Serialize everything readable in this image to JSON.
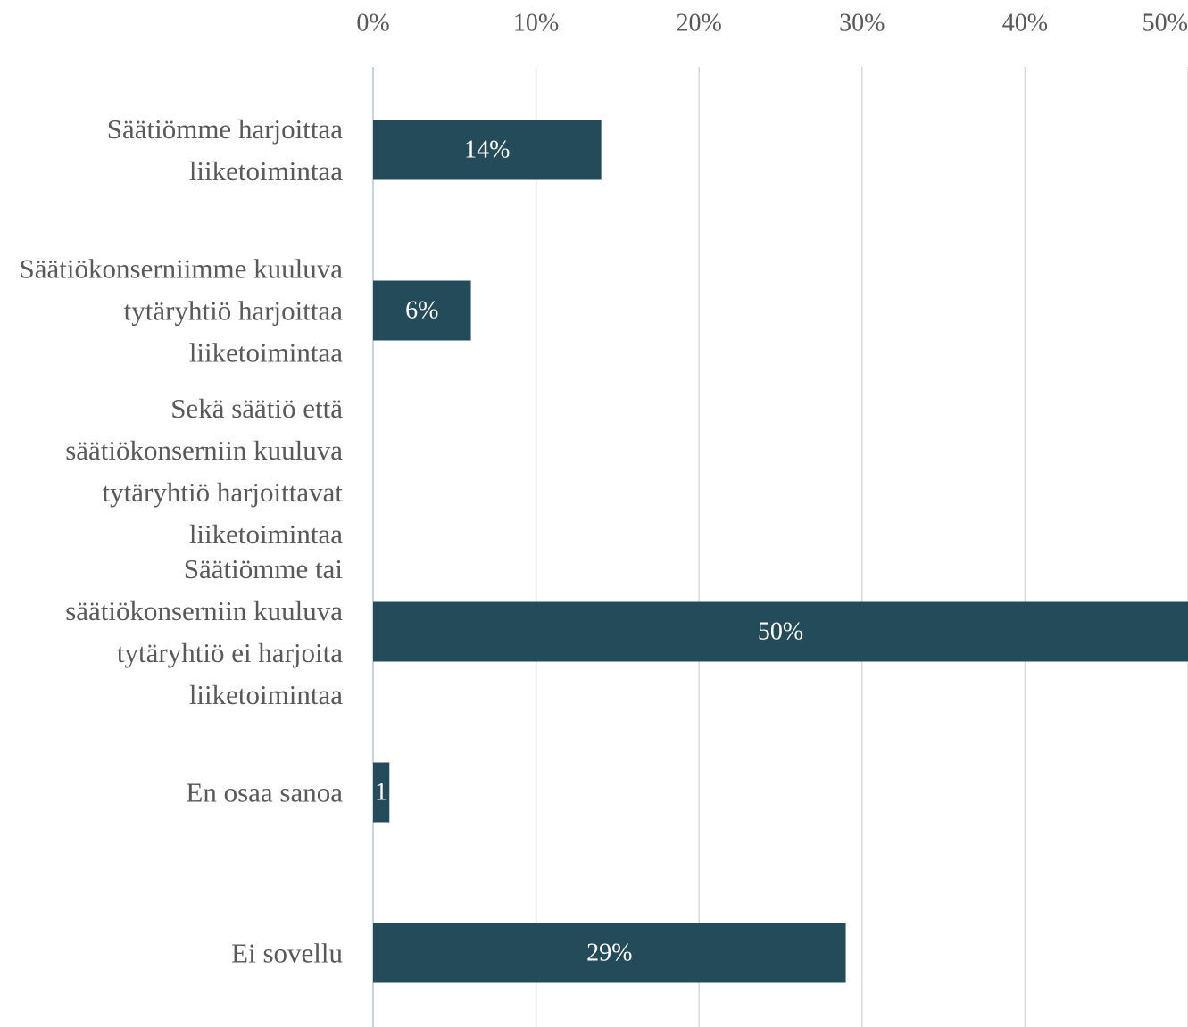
{
  "chart_data": {
    "type": "barh",
    "categories": [
      "Säätiömme harjoittaa liiketoimintaa",
      "Säätiökonserniimme kuuluva tytäryhtiö harjoittaa liiketoimintaa",
      "Sekä säätiö että säätiökonserniin kuuluva tytäryhtiö harjoittavat liiketoimintaa",
      "Säätiömme tai säätiökonserniin kuuluva tytäryhtiö ei harjoita liiketoimintaa",
      "En osaa sanoa",
      "Ei sovellu"
    ],
    "values": [
      14,
      6,
      0,
      50,
      1,
      29
    ],
    "value_labels": [
      "14%",
      "6%",
      null,
      "50%",
      "1",
      "29%"
    ],
    "color": "#234b5a",
    "xlim": [
      0,
      50
    ],
    "xticks": [
      {
        "value": 0,
        "label": "0%"
      },
      {
        "value": 10,
        "label": "10%"
      },
      {
        "value": 20,
        "label": "20%"
      },
      {
        "value": 30,
        "label": "30%"
      },
      {
        "value": 40,
        "label": "40%"
      },
      {
        "value": 50,
        "label": "50%"
      }
    ],
    "grid": true
  }
}
